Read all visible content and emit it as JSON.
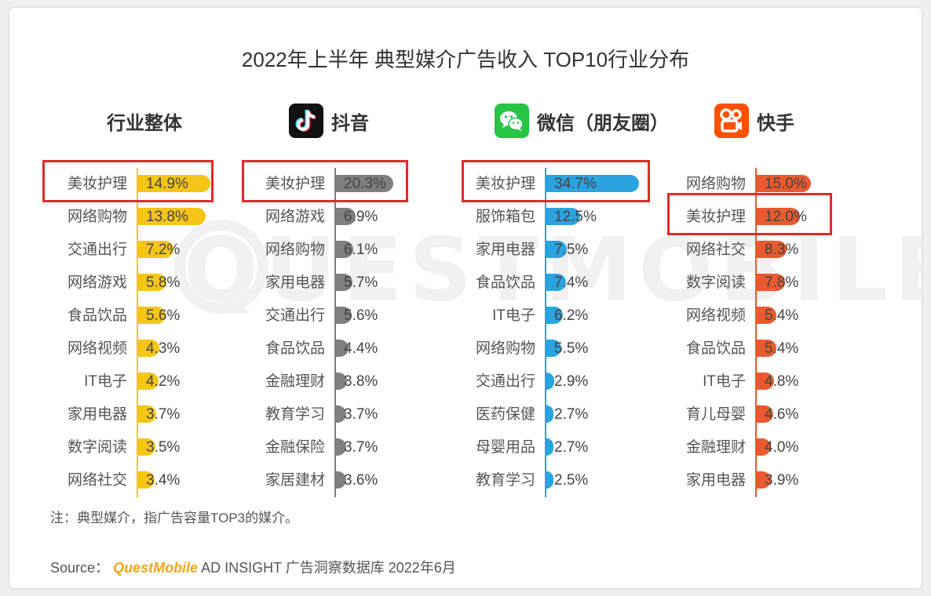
{
  "title": "2022年上半年 典型媒介广告收入 TOP10行业分布",
  "note": "注：典型媒介，指广告容量TOP3的媒介。",
  "source": {
    "prefix": "Source：",
    "brand": "QuestMobile",
    "suffix": "AD INSIGHT 广告洞察数据库 2022年6月"
  },
  "colors": {
    "overall": "#f5c518",
    "douyin": "#7f7f7f",
    "wechat": "#2aa3df",
    "kuaishou": "#ea5a2e",
    "highlight": "#e02a2a"
  },
  "panels": [
    {
      "title": "行业整体",
      "icon": ""
    },
    {
      "title": "抖音",
      "icon": "douyin-logo-icon"
    },
    {
      "title": "微信（朋友圈）",
      "icon": "wechat-logo-icon"
    },
    {
      "title": "快手",
      "icon": "kuaishou-logo-icon"
    }
  ],
  "chart_data": [
    {
      "type": "bar",
      "orientation": "horizontal",
      "title": "行业整体",
      "categories": [
        "美妆护理",
        "网络购物",
        "交通出行",
        "网络游戏",
        "食品饮品",
        "网络视频",
        "IT电子",
        "家用电器",
        "数字阅读",
        "网络社交"
      ],
      "values": [
        14.9,
        13.8,
        7.2,
        5.8,
        5.6,
        4.3,
        4.2,
        3.7,
        3.5,
        3.4
      ],
      "labels": [
        "14.9%",
        "13.8%",
        "7.2%",
        "5.8%",
        "5.6%",
        "4.3%",
        "4.2%",
        "3.7%",
        "3.5%",
        "3.4%"
      ],
      "unit": "%",
      "highlighted": [
        "美妆护理"
      ],
      "color": "#f5c518"
    },
    {
      "type": "bar",
      "orientation": "horizontal",
      "title": "抖音",
      "categories": [
        "美妆护理",
        "网络游戏",
        "网络购物",
        "家用电器",
        "交通出行",
        "食品饮品",
        "金融理财",
        "教育学习",
        "金融保险",
        "家居建材"
      ],
      "values": [
        20.3,
        6.9,
        6.1,
        5.7,
        5.6,
        4.4,
        3.8,
        3.7,
        3.7,
        3.6
      ],
      "labels": [
        "20.3%",
        "6.9%",
        "6.1%",
        "5.7%",
        "5.6%",
        "4.4%",
        "3.8%",
        "3.7%",
        "3.7%",
        "3.6%"
      ],
      "unit": "%",
      "highlighted": [
        "美妆护理"
      ],
      "color": "#7f7f7f"
    },
    {
      "type": "bar",
      "orientation": "horizontal",
      "title": "微信（朋友圈）",
      "categories": [
        "美妆护理",
        "服饰箱包",
        "家用电器",
        "食品饮品",
        "IT电子",
        "网络购物",
        "交通出行",
        "医药保健",
        "母婴用品",
        "教育学习"
      ],
      "values": [
        34.7,
        12.5,
        7.5,
        7.4,
        6.2,
        5.5,
        2.9,
        2.7,
        2.7,
        2.5
      ],
      "labels": [
        "34.7%",
        "12.5%",
        "7.5%",
        "7.4%",
        "6.2%",
        "5.5%",
        "2.9%",
        "2.7%",
        "2.7%",
        "2.5%"
      ],
      "unit": "%",
      "highlighted": [
        "美妆护理"
      ],
      "color": "#2aa3df"
    },
    {
      "type": "bar",
      "orientation": "horizontal",
      "title": "快手",
      "categories": [
        "网络购物",
        "美妆护理",
        "网络社交",
        "数字阅读",
        "网络视频",
        "食品饮品",
        "IT电子",
        "育儿母婴",
        "金融理财",
        "家用电器"
      ],
      "values": [
        15.0,
        12.0,
        8.3,
        7.8,
        5.4,
        5.4,
        4.8,
        4.6,
        4.0,
        3.9
      ],
      "labels": [
        "15.0%",
        "12.0%",
        "8.3%",
        "7.8%",
        "5.4%",
        "5.4%",
        "4.8%",
        "4.6%",
        "4.0%",
        "3.9%"
      ],
      "unit": "%",
      "highlighted": [
        "美妆护理"
      ],
      "color": "#ea5a2e"
    }
  ]
}
